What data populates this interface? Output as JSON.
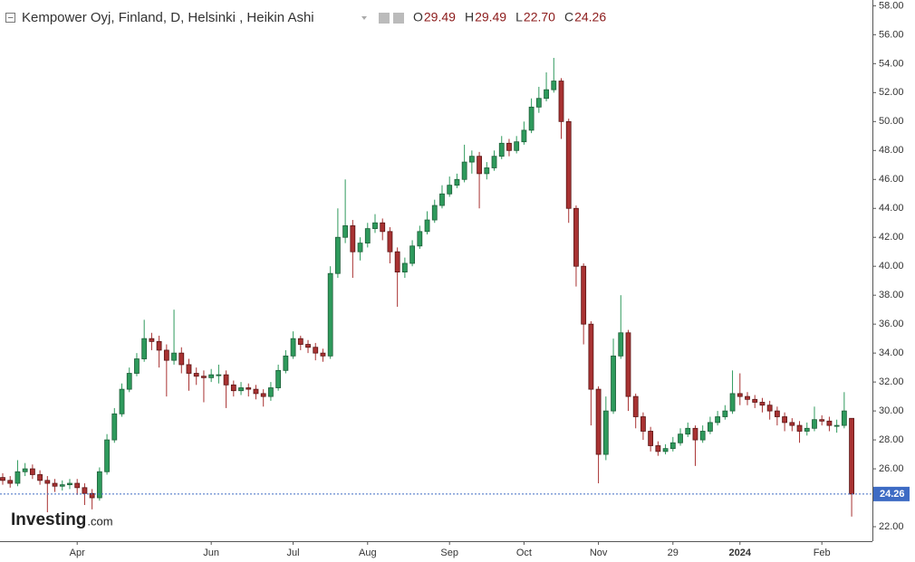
{
  "chart_data": {
    "type": "candlestick",
    "title": "Kempower Oyj, Finland, D, Helsinki , Heikin Ashi",
    "legend_values": [
      {
        "name": "O",
        "value": 29.49
      },
      {
        "name": "H",
        "value": 29.49
      },
      {
        "name": "L",
        "value": 22.7,
        "label": "22.70"
      },
      {
        "name": "C",
        "value": 24.26
      }
    ],
    "watermark": [
      "Investing",
      ".com"
    ],
    "up_color": "#2e9a5c",
    "down_color": "#a83232",
    "marker_color": "#3d6bc4",
    "grid": false,
    "categories": [
      null,
      null,
      null,
      null,
      null,
      null,
      null,
      null,
      null,
      null,
      "Apr",
      null,
      null,
      null,
      null,
      null,
      null,
      null,
      null,
      null,
      null,
      null,
      null,
      null,
      null,
      null,
      null,
      null,
      "Jun",
      null,
      null,
      null,
      null,
      null,
      null,
      null,
      null,
      null,
      null,
      "Jul",
      null,
      null,
      null,
      null,
      null,
      null,
      null,
      null,
      null,
      "Aug",
      null,
      null,
      null,
      null,
      null,
      null,
      null,
      null,
      null,
      null,
      "Sep",
      null,
      null,
      null,
      null,
      null,
      null,
      null,
      null,
      null,
      "Oct",
      null,
      null,
      null,
      null,
      null,
      null,
      null,
      null,
      null,
      "Nov",
      null,
      null,
      null,
      null,
      null,
      null,
      null,
      null,
      null,
      "29",
      null,
      null,
      null,
      null,
      null,
      null,
      null,
      null,
      "2024",
      null,
      null,
      null,
      null,
      null,
      null,
      null,
      null,
      null,
      null,
      "Feb",
      null,
      null,
      null,
      null
    ],
    "open": [
      25.4,
      25.2,
      25.0,
      25.8,
      26.0,
      25.6,
      25.2,
      25.0,
      24.8,
      24.9,
      25.0,
      24.7,
      24.3,
      24.0,
      25.8,
      28.0,
      29.8,
      31.5,
      32.6,
      33.6,
      35.0,
      34.8,
      34.2,
      33.5,
      34.0,
      33.2,
      32.6,
      32.4,
      32.3,
      32.5,
      32.5,
      31.8,
      31.4,
      31.6,
      31.5,
      31.2,
      31.0,
      31.6,
      32.8,
      33.8,
      35.0,
      34.6,
      34.4,
      34.0,
      33.8,
      39.5,
      42.0,
      42.8,
      41.0,
      41.6,
      42.6,
      43.0,
      42.4,
      41.0,
      39.6,
      40.2,
      41.4,
      42.4,
      43.2,
      44.2,
      45.0,
      45.6,
      46.0,
      47.2,
      47.6,
      46.4,
      46.8,
      47.6,
      48.5,
      48.0,
      48.6,
      49.4,
      51.0,
      51.6,
      52.2,
      52.8,
      50.0,
      44.0,
      40.0,
      36.0,
      31.5,
      27.0,
      30.0,
      33.8,
      35.4,
      31.0,
      29.6,
      28.6,
      27.6,
      27.2,
      27.4,
      27.8,
      28.4,
      28.8,
      28.0,
      28.6,
      29.2,
      29.6,
      30.0,
      31.2,
      31.0,
      30.8,
      30.6,
      30.4,
      30.0,
      29.6,
      29.2,
      29.0,
      28.6,
      28.8,
      29.4,
      29.3,
      29.0,
      29.0,
      29.49
    ],
    "high": [
      25.7,
      25.5,
      26.6,
      26.4,
      26.3,
      25.9,
      25.5,
      25.3,
      25.2,
      25.3,
      25.3,
      25.0,
      24.6,
      26.1,
      28.4,
      30.2,
      31.9,
      33.0,
      34.0,
      36.3,
      35.4,
      35.2,
      34.6,
      37.0,
      34.4,
      33.6,
      33.0,
      32.8,
      32.9,
      33.2,
      32.8,
      32.1,
      32.0,
      31.9,
      31.8,
      31.5,
      32.0,
      33.2,
      34.2,
      35.5,
      35.2,
      34.9,
      34.7,
      34.3,
      40.0,
      44.0,
      46.0,
      43.2,
      42.0,
      43.0,
      43.6,
      43.3,
      42.7,
      41.3,
      40.6,
      41.8,
      42.8,
      43.8,
      44.6,
      45.6,
      46.2,
      46.4,
      48.4,
      48.0,
      47.9,
      47.2,
      48.0,
      49.0,
      48.8,
      49.0,
      50.0,
      51.6,
      52.4,
      53.4,
      54.4,
      53.0,
      50.2,
      44.2,
      40.2,
      36.2,
      31.7,
      31.0,
      35.0,
      38.0,
      35.6,
      31.2,
      29.9,
      28.9,
      27.9,
      27.7,
      28.2,
      28.8,
      29.2,
      29.0,
      29.0,
      29.6,
      30.0,
      30.4,
      32.8,
      32.6,
      31.3,
      31.1,
      30.9,
      30.7,
      30.3,
      29.9,
      29.5,
      29.3,
      29.2,
      30.3,
      29.7,
      29.6,
      29.4,
      31.3,
      29.49
    ],
    "low": [
      24.9,
      24.7,
      24.8,
      25.5,
      25.3,
      24.9,
      23.0,
      24.4,
      24.5,
      24.6,
      24.2,
      23.5,
      23.2,
      23.8,
      25.6,
      27.8,
      29.6,
      31.3,
      32.4,
      33.4,
      34.2,
      33.0,
      31.0,
      33.2,
      32.6,
      31.4,
      31.8,
      30.6,
      32.0,
      31.9,
      30.2,
      31.0,
      31.1,
      31.0,
      30.8,
      30.3,
      30.7,
      31.4,
      32.6,
      33.6,
      34.2,
      34.0,
      33.5,
      33.4,
      33.6,
      39.2,
      41.6,
      39.2,
      40.4,
      41.3,
      42.3,
      41.8,
      40.2,
      37.2,
      39.2,
      40.0,
      41.2,
      42.2,
      43.0,
      44.0,
      44.8,
      45.4,
      45.8,
      46.4,
      44.0,
      46.0,
      46.6,
      47.4,
      47.6,
      47.8,
      48.4,
      49.2,
      50.6,
      51.4,
      52.0,
      48.8,
      43.0,
      38.6,
      34.6,
      29.0,
      25.0,
      26.6,
      29.8,
      33.6,
      30.0,
      28.8,
      28.0,
      27.2,
      26.9,
      27.0,
      27.2,
      27.6,
      28.2,
      26.2,
      27.8,
      28.4,
      29.0,
      29.4,
      29.8,
      30.4,
      30.4,
      30.2,
      29.9,
      29.4,
      29.0,
      28.6,
      28.6,
      27.8,
      28.3,
      28.6,
      29.0,
      28.6,
      28.5,
      28.8,
      22.7
    ],
    "close": [
      25.2,
      25.0,
      25.8,
      26.0,
      25.6,
      25.2,
      25.0,
      24.8,
      24.9,
      25.0,
      24.7,
      24.3,
      24.0,
      25.8,
      28.0,
      29.8,
      31.5,
      32.6,
      33.6,
      35.0,
      34.8,
      34.2,
      33.5,
      34.0,
      33.2,
      32.6,
      32.4,
      32.3,
      32.5,
      32.5,
      31.8,
      31.4,
      31.6,
      31.5,
      31.2,
      31.0,
      31.6,
      32.8,
      33.8,
      35.0,
      34.6,
      34.4,
      34.0,
      33.8,
      39.5,
      42.0,
      42.8,
      41.0,
      41.6,
      42.6,
      43.0,
      42.4,
      41.0,
      39.6,
      40.2,
      41.4,
      42.4,
      43.2,
      44.2,
      45.0,
      45.6,
      46.0,
      47.2,
      47.6,
      46.4,
      46.8,
      47.6,
      48.5,
      48.0,
      48.6,
      49.4,
      51.0,
      51.6,
      52.2,
      52.8,
      50.0,
      44.0,
      40.0,
      36.0,
      31.5,
      27.0,
      30.0,
      33.8,
      35.4,
      31.0,
      29.6,
      28.6,
      27.6,
      27.2,
      27.4,
      27.8,
      28.4,
      28.8,
      28.0,
      28.6,
      29.2,
      29.6,
      30.0,
      31.2,
      31.0,
      30.8,
      30.6,
      30.4,
      30.0,
      29.6,
      29.2,
      29.0,
      28.6,
      28.8,
      29.4,
      29.3,
      29.0,
      29.0,
      30.0,
      24.26
    ],
    "ylim": [
      21,
      58.4
    ],
    "yticks": [
      {
        "value": 22,
        "label": "22.00"
      },
      {
        "value": 24,
        "label": "24.00"
      },
      {
        "value": 26,
        "label": "26.00"
      },
      {
        "value": 28,
        "label": "28.00"
      },
      {
        "value": 30,
        "label": "30.00"
      },
      {
        "value": 32,
        "label": "32.00"
      },
      {
        "value": 34,
        "label": "34.00"
      },
      {
        "value": 36,
        "label": "36.00"
      },
      {
        "value": 38,
        "label": "38.00"
      },
      {
        "value": 40,
        "label": "40.00"
      },
      {
        "value": 42,
        "label": "42.00"
      },
      {
        "value": 44,
        "label": "44.00"
      },
      {
        "value": 46,
        "label": "46.00"
      },
      {
        "value": 48,
        "label": "48.00"
      },
      {
        "value": 50,
        "label": "50.00"
      },
      {
        "value": 52,
        "label": "52.00"
      },
      {
        "value": 54,
        "label": "54.00"
      },
      {
        "value": 56,
        "label": "56.00"
      },
      {
        "value": 58,
        "label": "58.00"
      }
    ]
  }
}
